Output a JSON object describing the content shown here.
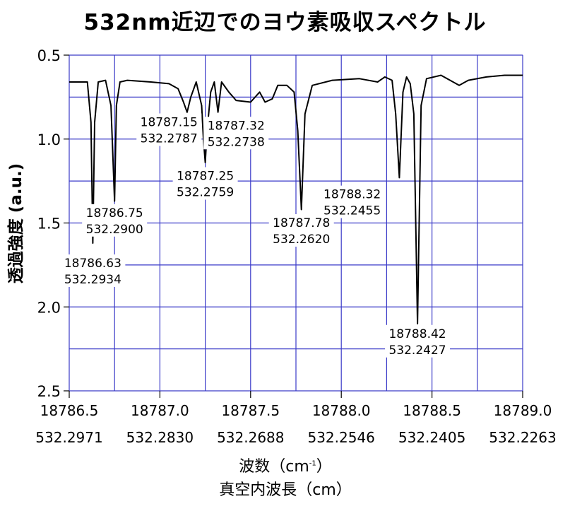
{
  "chart_data": {
    "type": "line",
    "title": "532nm近辺でのヨウ素吸収スペクトル",
    "ylabel": "透過強度 (a.u.)",
    "xlabel_line1": "波数（cm",
    "xlabel_line1_sup": "-1",
    "xlabel_line1_end": "）",
    "xlabel_line2": "真空内波長（cm）",
    "xlim": [
      18786.5,
      18789.0
    ],
    "ylim": [
      0.5,
      2.5
    ],
    "y_inverted": true,
    "grid": true,
    "x_ticks": [
      {
        "value": 18786.5,
        "label": "18786.5",
        "wavelength": "532.2971"
      },
      {
        "value": 18787.0,
        "label": "18787.0",
        "wavelength": "532.2830"
      },
      {
        "value": 18787.5,
        "label": "18787.5",
        "wavelength": "532.2688"
      },
      {
        "value": 18788.0,
        "label": "18788.0",
        "wavelength": "532.2546"
      },
      {
        "value": 18788.5,
        "label": "18788.5",
        "wavelength": "532.2405"
      },
      {
        "value": 18789.0,
        "label": "18789.0",
        "wavelength": "532.2263"
      }
    ],
    "y_ticks": [
      {
        "value": 0.5,
        "label": "0.5"
      },
      {
        "value": 1.0,
        "label": "1.0"
      },
      {
        "value": 1.5,
        "label": "1.5"
      },
      {
        "value": 2.0,
        "label": "2.0"
      },
      {
        "value": 2.5,
        "label": "2.5"
      }
    ],
    "series": [
      {
        "color": "#000000",
        "x": [
          18786.5,
          18786.6,
          18786.62,
          18786.63,
          18786.64,
          18786.66,
          18786.7,
          18786.73,
          18786.75,
          18786.76,
          18786.78,
          18786.82,
          18786.95,
          18787.05,
          18787.1,
          18787.13,
          18787.15,
          18787.17,
          18787.2,
          18787.23,
          18787.24,
          18787.25,
          18787.26,
          18787.28,
          18787.3,
          18787.32,
          18787.34,
          18787.38,
          18787.42,
          18787.5,
          18787.55,
          18787.58,
          18787.62,
          18787.65,
          18787.7,
          18787.74,
          18787.76,
          18787.78,
          18787.8,
          18787.84,
          18787.95,
          18788.1,
          18788.2,
          18788.24,
          18788.28,
          18788.3,
          18788.32,
          18788.34,
          18788.36,
          18788.38,
          18788.4,
          18788.42,
          18788.44,
          18788.47,
          18788.55,
          18788.65,
          18788.7,
          18788.8,
          18788.9,
          18789.0
        ],
        "y": [
          0.66,
          0.66,
          0.9,
          1.62,
          0.9,
          0.66,
          0.65,
          0.8,
          1.37,
          0.8,
          0.66,
          0.65,
          0.66,
          0.67,
          0.7,
          0.78,
          0.84,
          0.75,
          0.66,
          0.8,
          1.0,
          1.14,
          0.95,
          0.72,
          0.66,
          0.84,
          0.66,
          0.72,
          0.77,
          0.78,
          0.72,
          0.78,
          0.76,
          0.68,
          0.68,
          0.72,
          0.95,
          1.42,
          0.85,
          0.68,
          0.65,
          0.64,
          0.66,
          0.63,
          0.65,
          0.85,
          1.23,
          0.72,
          0.63,
          0.67,
          0.85,
          2.1,
          0.8,
          0.64,
          0.62,
          0.68,
          0.65,
          0.63,
          0.62,
          0.62
        ]
      }
    ],
    "annotations": [
      {
        "x": 18786.63,
        "y": 1.78,
        "line1": "18786.63",
        "line2": "532.2934"
      },
      {
        "x": 18786.75,
        "y": 1.48,
        "line1": "18786.75",
        "line2": "532.2900"
      },
      {
        "x": 18787.05,
        "y": 0.94,
        "line1": "18787.15",
        "line2": "532.2787"
      },
      {
        "x": 18787.25,
        "y": 1.26,
        "line1": "18787.25",
        "line2": "532.2759"
      },
      {
        "x": 18787.42,
        "y": 0.96,
        "line1": "18787.32",
        "line2": "532.2738"
      },
      {
        "x": 18787.78,
        "y": 1.54,
        "line1": "18787.78",
        "line2": "532.2620"
      },
      {
        "x": 18788.06,
        "y": 1.37,
        "line1": "18788.32",
        "line2": "532.2455"
      },
      {
        "x": 18788.42,
        "y": 2.2,
        "line1": "18788.42",
        "line2": "532.2427"
      }
    ]
  }
}
